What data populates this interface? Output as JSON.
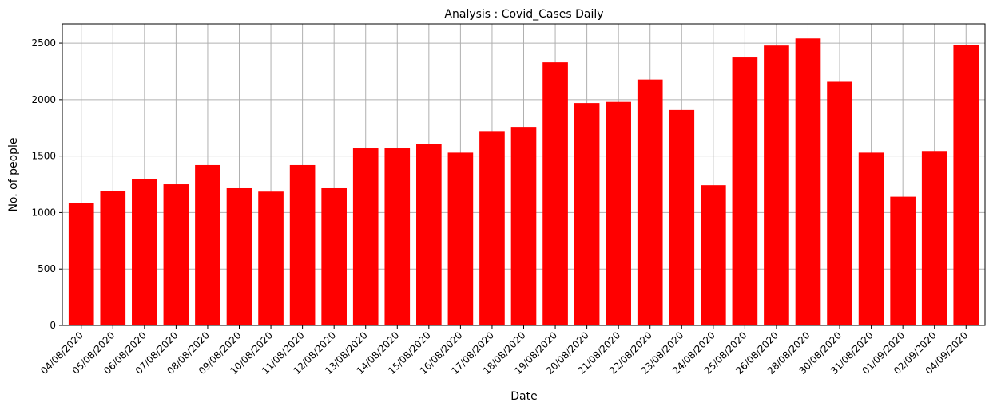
{
  "chart_data": {
    "type": "bar",
    "title": "Analysis : Covid_Cases Daily",
    "xlabel": "Date",
    "ylabel": "No. of people",
    "categories": [
      "04/08/2020",
      "05/08/2020",
      "06/08/2020",
      "07/08/2020",
      "08/08/2020",
      "09/08/2020",
      "10/08/2020",
      "11/08/2020",
      "12/08/2020",
      "13/08/2020",
      "14/08/2020",
      "15/08/2020",
      "16/08/2020",
      "17/08/2020",
      "18/08/2020",
      "19/08/2020",
      "20/08/2020",
      "21/08/2020",
      "22/08/2020",
      "23/08/2020",
      "24/08/2020",
      "25/08/2020",
      "26/08/2020",
      "28/08/2020",
      "30/08/2020",
      "31/08/2020",
      "01/09/2020",
      "02/09/2020",
      "04/09/2020"
    ],
    "values": [
      1085,
      1193,
      1299,
      1250,
      1420,
      1215,
      1185,
      1420,
      1215,
      1568,
      1568,
      1610,
      1530,
      1721,
      1758,
      2330,
      1970,
      1980,
      2178,
      1908,
      1242,
      2373,
      2478,
      2541,
      2158,
      1530,
      1140,
      1545,
      2480
    ],
    "yticks": [
      0,
      500,
      1000,
      1500,
      2000,
      2500
    ],
    "ylim": [
      0,
      2670
    ],
    "grid": true,
    "bar_color": "#ff0000",
    "grid_color": "#b0b0b0"
  }
}
